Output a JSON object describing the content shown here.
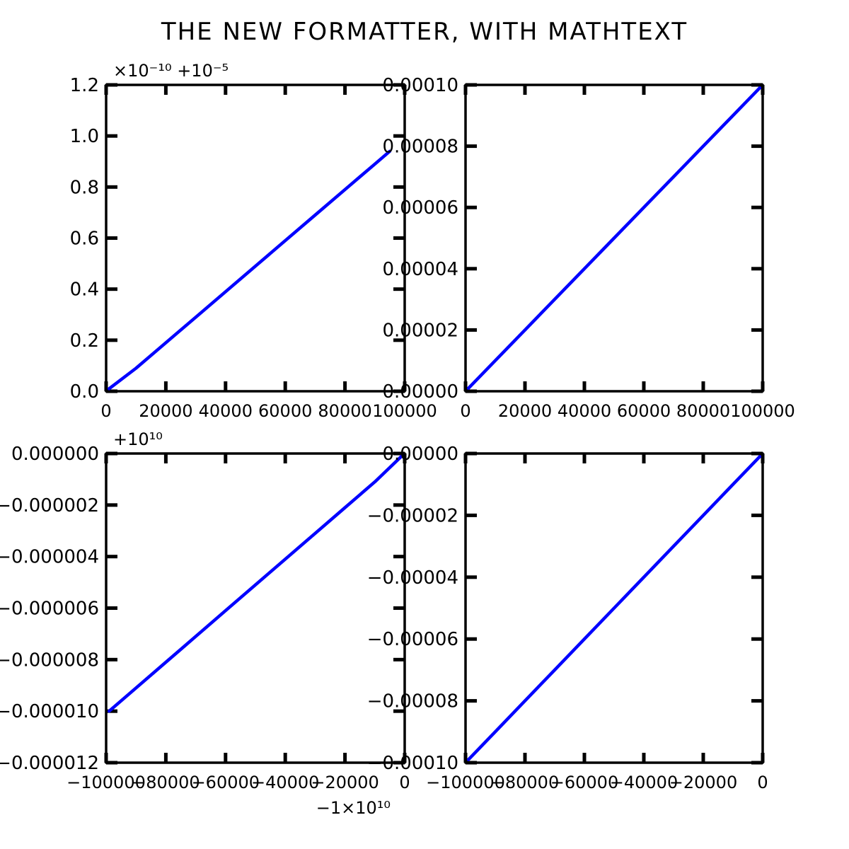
{
  "figure": {
    "title": "THE NEW FORMATTER, WITH MATHTEXT"
  },
  "chart_data": [
    {
      "type": "line",
      "title": "",
      "xlabel": "",
      "ylabel": "",
      "xlim": [
        0,
        100000
      ],
      "ylim": [
        0,
        1.2
      ],
      "offset_text": "×10⁻¹⁰ +10⁻⁵",
      "x_ticks": [
        0,
        20000,
        40000,
        60000,
        80000,
        100000
      ],
      "x_tick_labels": [
        "0",
        "20000",
        "40000",
        "60000",
        "80000",
        "100000"
      ],
      "y_ticks": [
        0,
        0.2,
        0.4,
        0.6,
        0.8,
        1.0,
        1.2
      ],
      "y_tick_labels": [
        "0.0",
        "0.2",
        "0.4",
        "0.6",
        "0.8",
        "1.0",
        "1.2"
      ],
      "series": [
        {
          "x": [
            1000,
            10000,
            20000,
            30000,
            40000,
            50000,
            60000,
            70000,
            80000,
            90000,
            95000
          ],
          "y": [
            0.01,
            0.09,
            0.19,
            0.29,
            0.39,
            0.49,
            0.59,
            0.69,
            0.79,
            0.89,
            0.94
          ]
        }
      ],
      "grid": false,
      "color": "#0000ff"
    },
    {
      "type": "line",
      "title": "",
      "xlabel": "",
      "ylabel": "",
      "xlim": [
        0,
        100000
      ],
      "ylim": [
        0,
        0.0001
      ],
      "x_ticks": [
        0,
        20000,
        40000,
        60000,
        80000,
        100000
      ],
      "x_tick_labels": [
        "0",
        "20000",
        "40000",
        "60000",
        "80000",
        "100000"
      ],
      "y_ticks": [
        0,
        2e-05,
        4e-05,
        6e-05,
        8e-05,
        0.0001
      ],
      "y_tick_labels": [
        "0.00000",
        "0.00002",
        "0.00004",
        "0.00006",
        "0.00008",
        "0.00010"
      ],
      "series": [
        {
          "x": [
            1000,
            10000,
            20000,
            30000,
            40000,
            50000,
            60000,
            70000,
            80000,
            90000,
            99000
          ],
          "y": [
            1e-06,
            1e-05,
            2e-05,
            3e-05,
            4e-05,
            5e-05,
            6e-05,
            7e-05,
            8e-05,
            9e-05,
            9.9e-05
          ]
        }
      ],
      "grid": false,
      "color": "#0000ff"
    },
    {
      "type": "line",
      "title": "",
      "xlabel": "",
      "ylabel": "",
      "xlim": [
        -100000,
        0
      ],
      "ylim": [
        -1.2e-05,
        0
      ],
      "offset_text": "+10¹⁰",
      "x_offset_text": "−1×10¹⁰",
      "x_ticks": [
        -100000,
        -80000,
        -60000,
        -40000,
        -20000,
        0
      ],
      "x_tick_labels": [
        "−100000",
        "−80000",
        "−60000",
        "−40000",
        "−20000",
        "0"
      ],
      "y_ticks": [
        0,
        -2e-06,
        -4e-06,
        -6e-06,
        -8e-06,
        -1e-05,
        -1.2e-05
      ],
      "y_tick_labels": [
        "0.000000",
        "−0.000002",
        "−0.000004",
        "−0.000006",
        "−0.000008",
        "−0.000010",
        "−0.000012"
      ],
      "series": [
        {
          "x": [
            -99000,
            -90000,
            -80000,
            -70000,
            -60000,
            -50000,
            -40000,
            -30000,
            -20000,
            -10000,
            -1000
          ],
          "y": [
            -1e-05,
            -9.1e-06,
            -8.1e-06,
            -7.1e-06,
            -6.1e-06,
            -5.1e-06,
            -4.1e-06,
            -3.1e-06,
            -2.1e-06,
            -1.1e-06,
            -1e-07
          ]
        }
      ],
      "grid": false,
      "color": "#0000ff"
    },
    {
      "type": "line",
      "title": "",
      "xlabel": "",
      "ylabel": "",
      "xlim": [
        -100000,
        0
      ],
      "ylim": [
        -0.0001,
        0
      ],
      "x_ticks": [
        -100000,
        -80000,
        -60000,
        -40000,
        -20000,
        0
      ],
      "x_tick_labels": [
        "−100000",
        "−80000",
        "−60000",
        "−40000",
        "−20000",
        "0"
      ],
      "y_ticks": [
        0,
        -2e-05,
        -4e-05,
        -6e-05,
        -8e-05,
        -0.0001
      ],
      "y_tick_labels": [
        "0.00000",
        "−0.00002",
        "−0.00004",
        "−0.00006",
        "−0.00008",
        "−0.00010"
      ],
      "series": [
        {
          "x": [
            -99000,
            -90000,
            -80000,
            -70000,
            -60000,
            -50000,
            -40000,
            -30000,
            -20000,
            -10000,
            -1000
          ],
          "y": [
            -9.9e-05,
            -9e-05,
            -8e-05,
            -7e-05,
            -6e-05,
            -5e-05,
            -4e-05,
            -3e-05,
            -2e-05,
            -1e-05,
            -1e-06
          ]
        }
      ],
      "grid": false,
      "color": "#0000ff"
    }
  ]
}
